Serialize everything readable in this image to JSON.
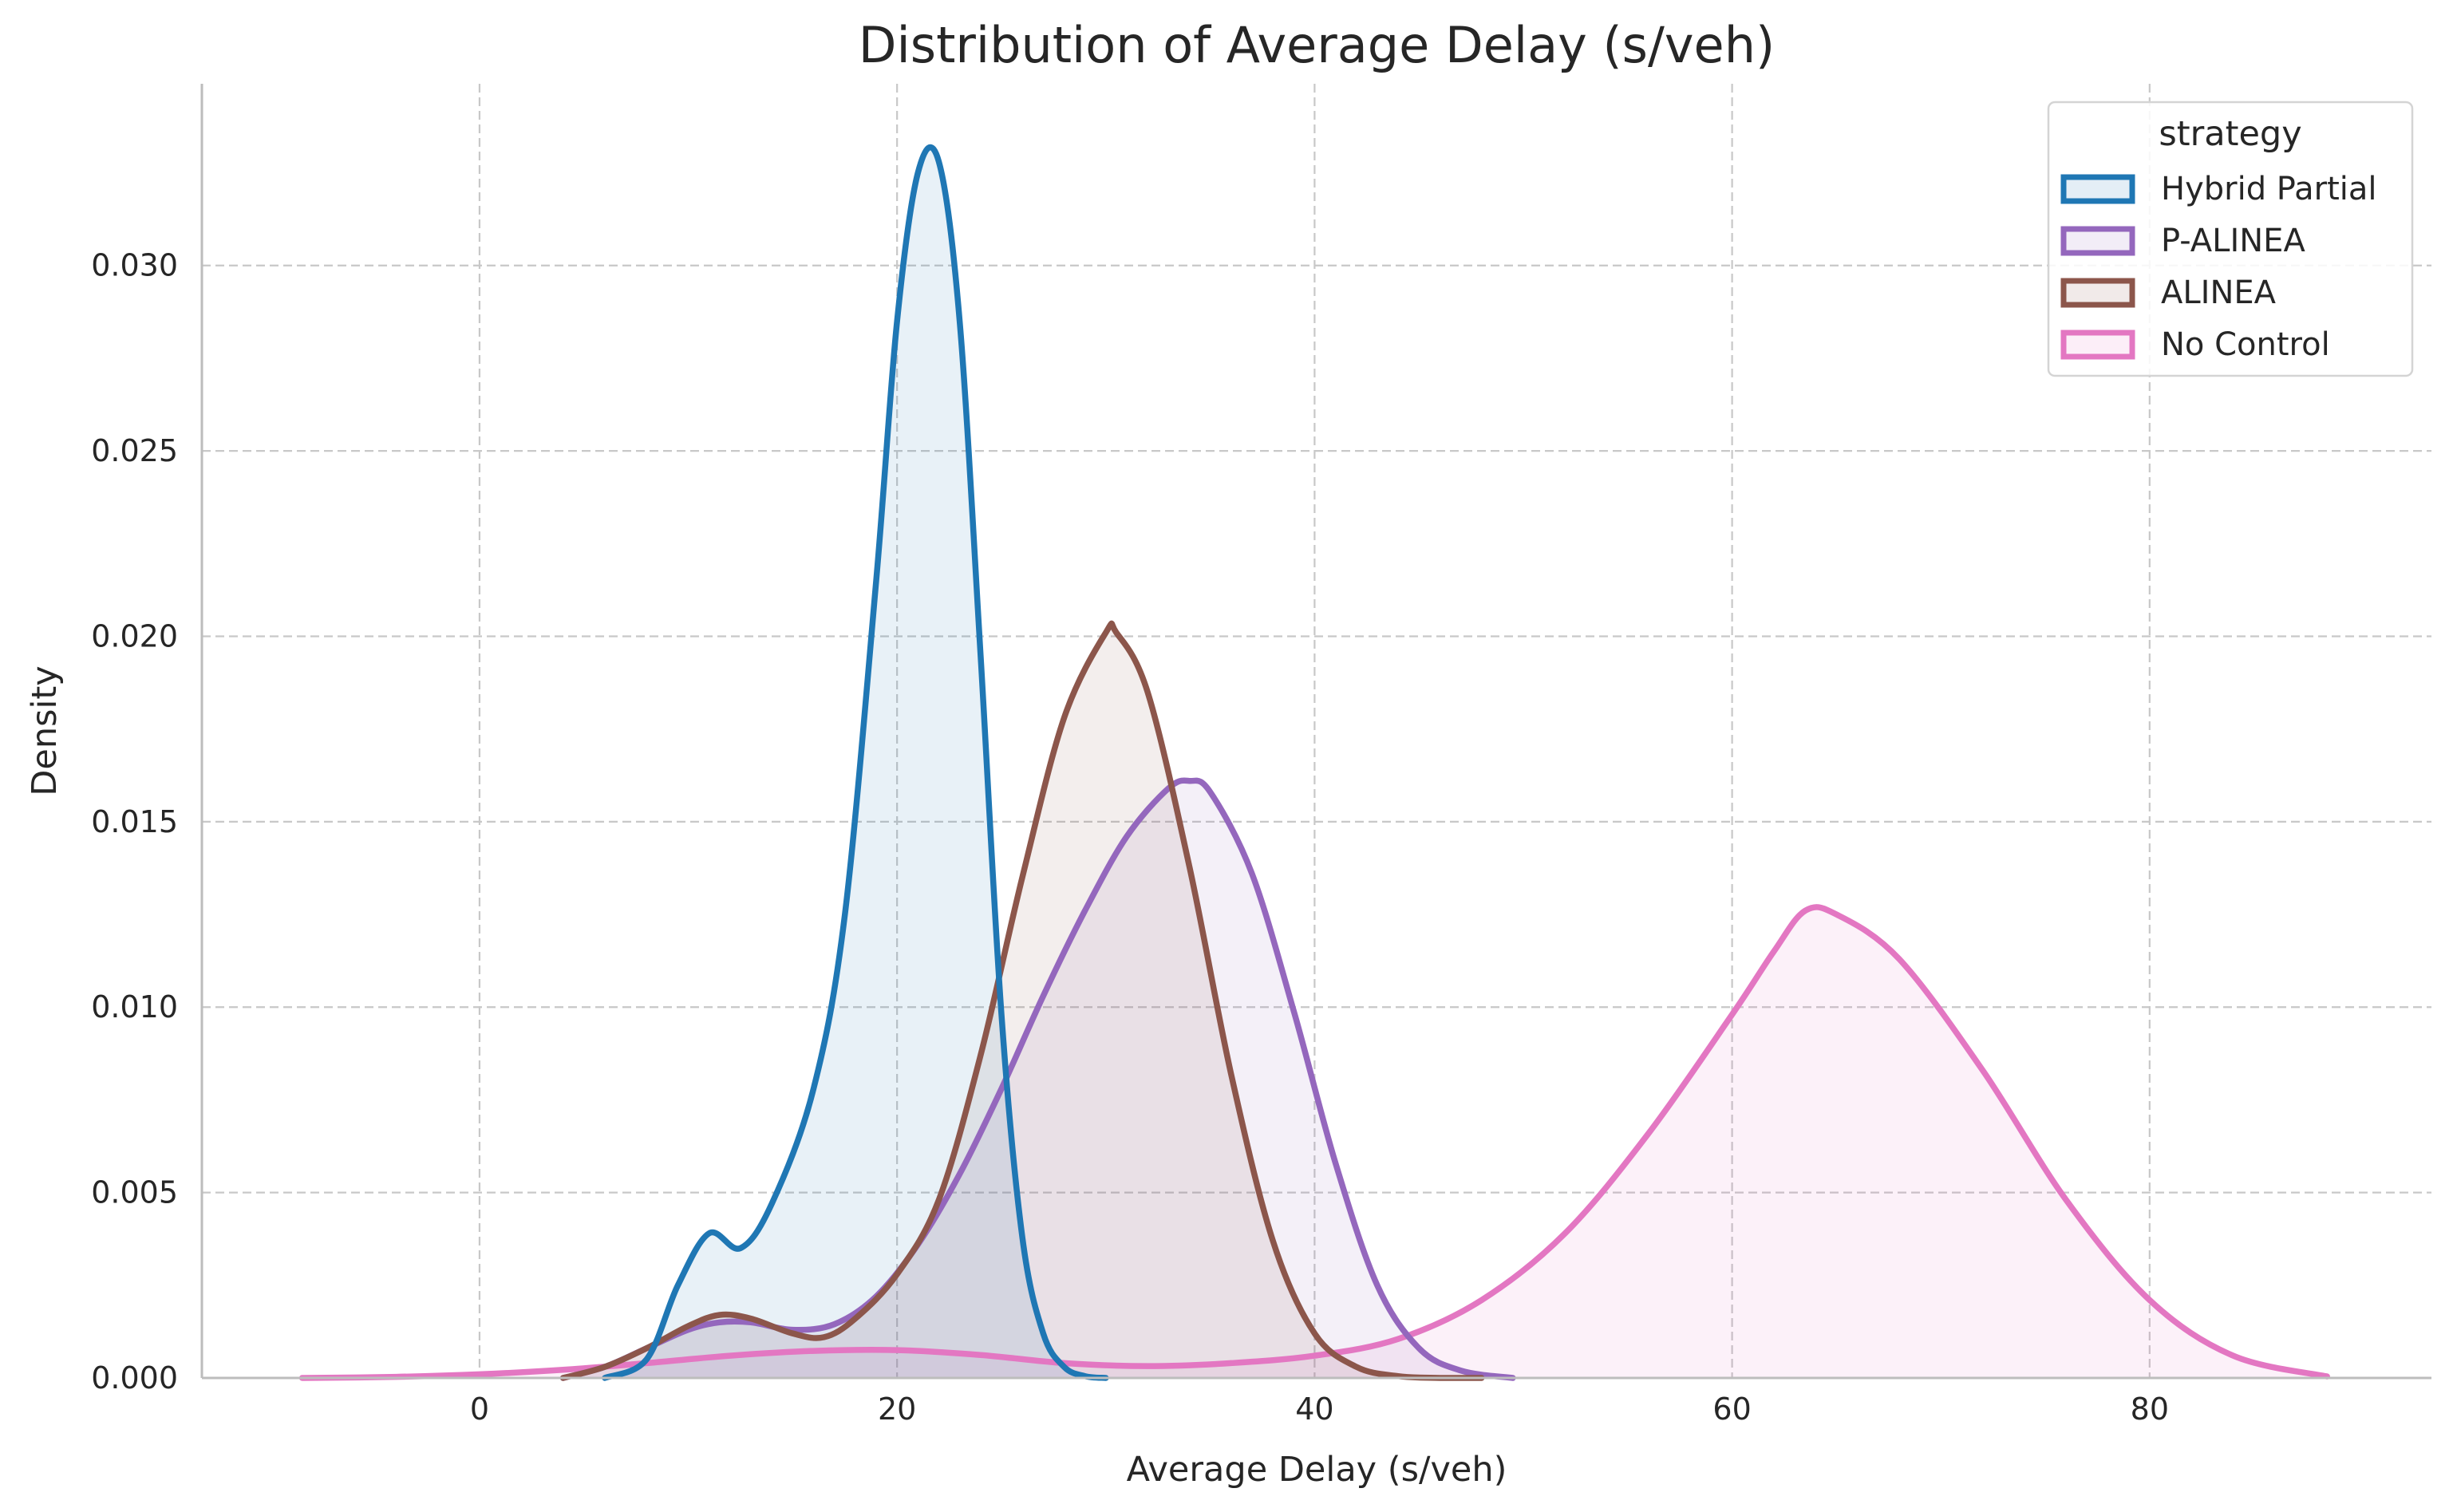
{
  "chart_data": {
    "type": "area",
    "title": "Distribution of Average Delay (s/veh)",
    "xlabel": "Average Delay (s/veh)",
    "ylabel": "Density",
    "xlim": [
      -13.3,
      93.5
    ],
    "ylim": [
      0,
      0.0349
    ],
    "xticks": [
      0,
      20,
      40,
      60,
      80
    ],
    "yticks": [
      0.0,
      0.005,
      0.01,
      0.015,
      0.02,
      0.025,
      0.03
    ],
    "ytick_labels": [
      "0.000",
      "0.005",
      "0.010",
      "0.015",
      "0.020",
      "0.025",
      "0.030"
    ],
    "grid": true,
    "legend": {
      "title": "strategy",
      "placement": "top-right"
    },
    "series": [
      {
        "name": "No Control",
        "color": "#e377c2",
        "x": [
          -8.5,
          -4,
          0,
          4,
          8,
          12,
          16,
          20,
          24,
          28,
          32,
          36,
          40,
          44,
          48,
          52,
          56,
          60,
          62,
          63.5,
          65,
          68,
          72,
          76,
          80,
          84,
          88.5
        ],
        "y": [
          0.0,
          3e-05,
          0.0001,
          0.00022,
          0.0004,
          0.0006,
          0.00073,
          0.00075,
          0.00062,
          0.0004,
          0.00032,
          0.0004,
          0.0006,
          0.00105,
          0.0021,
          0.0039,
          0.0066,
          0.0098,
          0.0115,
          0.0126,
          0.0125,
          0.0113,
          0.0083,
          0.0048,
          0.0021,
          0.0006,
          4e-05
        ]
      },
      {
        "name": "P-ALINEA",
        "color": "#9467bd",
        "x": [
          4,
          6,
          8,
          10,
          11.5,
          13,
          15,
          17,
          19,
          21,
          23,
          25,
          27,
          29,
          31,
          33,
          34,
          35,
          37,
          39,
          41,
          43,
          45,
          47,
          49.5
        ],
        "y": [
          0.0,
          0.0003,
          0.0008,
          0.0013,
          0.0015,
          0.0015,
          0.0013,
          0.00145,
          0.0022,
          0.0036,
          0.0055,
          0.0078,
          0.0103,
          0.0126,
          0.0146,
          0.0159,
          0.0161,
          0.0158,
          0.0136,
          0.0099,
          0.0058,
          0.0025,
          0.0008,
          0.0002,
          0.0
        ]
      },
      {
        "name": "ALINEA",
        "color": "#8c564b",
        "x": [
          4,
          6,
          8,
          10,
          11.5,
          13,
          15,
          16.5,
          18,
          20,
          22,
          24,
          26,
          28,
          30,
          30.5,
          32,
          34,
          36,
          38,
          40,
          42,
          44,
          46,
          48
        ],
        "y": [
          0.0,
          0.0003,
          0.0008,
          0.0014,
          0.0017,
          0.0016,
          0.0012,
          0.0011,
          0.0016,
          0.0028,
          0.0048,
          0.0087,
          0.0135,
          0.0178,
          0.0201,
          0.0201,
          0.0185,
          0.0138,
          0.0082,
          0.0037,
          0.0012,
          0.0003,
          5e-05,
          0.0,
          0.0
        ]
      },
      {
        "name": "Hybrid Partial",
        "color": "#1f77b4",
        "x": [
          6,
          8,
          9.5,
          11,
          12.5,
          14,
          16,
          17.5,
          19,
          20,
          21,
          22,
          23,
          24,
          25,
          26,
          27,
          28,
          29,
          30
        ],
        "y": [
          0.0,
          0.0005,
          0.0025,
          0.0039,
          0.0035,
          0.0047,
          0.0078,
          0.0125,
          0.0215,
          0.0285,
          0.0325,
          0.0328,
          0.0285,
          0.0195,
          0.0098,
          0.0038,
          0.0012,
          0.0003,
          5e-05,
          0.0
        ]
      }
    ]
  }
}
